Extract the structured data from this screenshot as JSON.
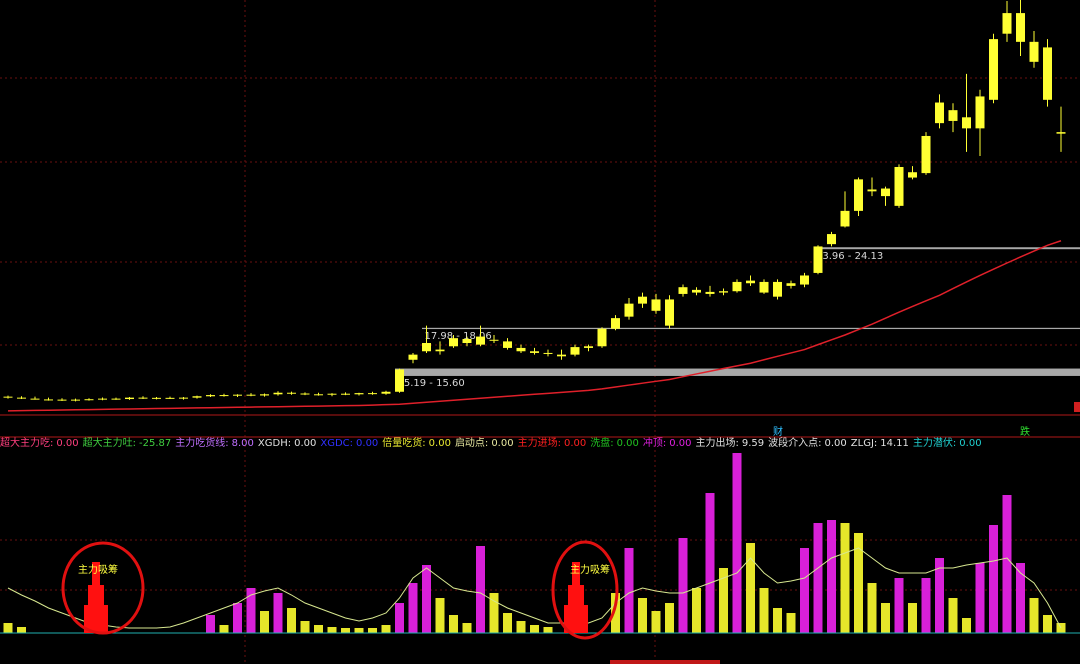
{
  "chart_data": [
    {
      "type": "candlestick",
      "log_scale": true,
      "ylim": [
        13.2,
        58.7
      ],
      "color": "#ffff33",
      "open": [
        14.1,
        14.05,
        14.0,
        13.96,
        13.95,
        13.92,
        13.95,
        13.97,
        14.0,
        13.98,
        14.05,
        14.0,
        14.04,
        14.0,
        14.05,
        14.12,
        14.18,
        14.15,
        14.2,
        14.16,
        14.22,
        14.3,
        14.26,
        14.22,
        14.2,
        14.25,
        14.22,
        14.28,
        14.25,
        14.35,
        16.1,
        16.6,
        16.7,
        16.9,
        17.1,
        17.0,
        17.3,
        17.2,
        16.8,
        16.6,
        16.5,
        16.4,
        16.4,
        16.8,
        16.9,
        18.0,
        18.8,
        19.7,
        20.0,
        18.2,
        20.4,
        20.7,
        20.4,
        20.5,
        20.6,
        21.2,
        21.3,
        20.2,
        21.0,
        21.1,
        22.0,
        24.4,
        26.0,
        27.5,
        29.5,
        29.0,
        28.0,
        31.0,
        31.5,
        37.7,
        39.5,
        38.5,
        37.0,
        41.0,
        52.0,
        56.0,
        50.5,
        49.5,
        36.5
      ],
      "high": [
        14.15,
        14.12,
        14.1,
        14.05,
        14.02,
        14.0,
        14.02,
        14.06,
        14.05,
        14.08,
        14.12,
        14.08,
        14.1,
        14.08,
        14.15,
        14.22,
        14.25,
        14.22,
        14.28,
        14.26,
        14.38,
        14.36,
        14.32,
        14.3,
        14.28,
        14.32,
        14.3,
        14.35,
        14.4,
        15.6,
        16.5,
        18.2,
        17.2,
        17.6,
        17.5,
        18.2,
        17.6,
        17.4,
        17.0,
        16.8,
        16.7,
        16.7,
        17.0,
        17.0,
        18.1,
        18.9,
        20.1,
        20.5,
        20.4,
        20.3,
        21.1,
        20.9,
        21.0,
        20.8,
        21.5,
        21.8,
        21.5,
        21.5,
        21.4,
        22.0,
        24.3,
        25.5,
        29.5,
        31.0,
        31.0,
        30.0,
        32.5,
        32.3,
        36.5,
        41.8,
        40.5,
        45.0,
        42.5,
        52.0,
        58.5,
        59.0,
        52.5,
        51.0,
        40.0
      ],
      "low": [
        14.0,
        13.98,
        13.95,
        13.9,
        13.88,
        13.86,
        13.9,
        13.92,
        13.94,
        13.94,
        13.98,
        13.96,
        13.98,
        13.95,
        14.0,
        14.08,
        14.1,
        14.08,
        14.12,
        14.1,
        14.15,
        14.2,
        14.18,
        14.15,
        14.12,
        14.18,
        14.16,
        14.2,
        14.2,
        14.3,
        15.9,
        16.5,
        16.4,
        16.8,
        16.9,
        16.9,
        17.1,
        16.7,
        16.5,
        16.4,
        16.3,
        16.1,
        16.3,
        16.6,
        16.8,
        17.9,
        18.6,
        19.4,
        19.0,
        18.0,
        20.2,
        20.3,
        20.2,
        20.3,
        20.5,
        21.0,
        20.4,
        20.0,
        20.8,
        20.9,
        21.9,
        24.2,
        25.9,
        27.0,
        29.0,
        28.0,
        27.8,
        30.8,
        31.3,
        37.0,
        36.5,
        34.0,
        33.5,
        40.5,
        50.5,
        48.0,
        46.0,
        40.0,
        34.0
      ],
      "close": [
        14.05,
        14.02,
        13.96,
        13.95,
        13.92,
        13.95,
        13.97,
        14.0,
        13.98,
        14.05,
        14.0,
        14.04,
        14.0,
        14.05,
        14.12,
        14.18,
        14.15,
        14.2,
        14.16,
        14.22,
        14.3,
        14.26,
        14.22,
        14.2,
        14.25,
        14.22,
        14.28,
        14.25,
        14.35,
        15.55,
        16.4,
        17.1,
        16.6,
        17.4,
        17.35,
        17.5,
        17.25,
        16.8,
        16.6,
        16.5,
        16.45,
        16.3,
        16.85,
        16.9,
        18.0,
        18.7,
        19.7,
        20.2,
        19.2,
        20.0,
        20.9,
        20.5,
        20.55,
        20.6,
        21.3,
        21.4,
        20.5,
        21.3,
        21.2,
        21.8,
        24.2,
        25.3,
        27.5,
        30.8,
        29.7,
        29.8,
        32.2,
        31.6,
        36.0,
        40.6,
        38.0,
        37.0,
        41.5,
        51.0,
        56.0,
        50.5,
        47.0,
        41.0,
        36.3
      ],
      "ma": {
        "color": "#e0202a",
        "values": [
          13.4,
          13.41,
          13.42,
          13.43,
          13.44,
          13.45,
          13.46,
          13.47,
          13.48,
          13.49,
          13.5,
          13.51,
          13.52,
          13.53,
          13.54,
          13.55,
          13.56,
          13.57,
          13.58,
          13.59,
          13.6,
          13.61,
          13.62,
          13.63,
          13.64,
          13.65,
          13.66,
          13.68,
          13.7,
          13.72,
          13.77,
          13.82,
          13.87,
          13.92,
          13.97,
          14.02,
          14.07,
          14.12,
          14.17,
          14.22,
          14.27,
          14.32,
          14.37,
          14.42,
          14.5,
          14.6,
          14.7,
          14.8,
          14.9,
          15.0,
          15.15,
          15.3,
          15.45,
          15.6,
          15.75,
          15.9,
          16.1,
          16.3,
          16.5,
          16.7,
          17.0,
          17.3,
          17.6,
          17.95,
          18.3,
          18.7,
          19.1,
          19.5,
          19.9,
          20.3,
          20.8,
          21.3,
          21.8,
          22.3,
          22.8,
          23.3,
          23.8,
          24.3,
          24.7
        ]
      },
      "zones": [
        {
          "label": "15.19 - 15.60",
          "low": 15.19,
          "high": 15.6
        },
        {
          "label": "17.98 - 18.06",
          "low": 17.98,
          "high": 18.06
        },
        {
          "label": "23.96 - 24.13",
          "low": 23.96,
          "high": 24.13
        }
      ],
      "markers": [
        {
          "text": "财",
          "color": "#30c0ff"
        },
        {
          "text": "跌",
          "color": "#30e030"
        }
      ]
    },
    {
      "type": "bar",
      "ylim": [
        0,
        190
      ],
      "series": [
        {
          "color": "#d820d8",
          "values": [
            null,
            null,
            null,
            null,
            null,
            null,
            null,
            null,
            null,
            null,
            null,
            null,
            null,
            null,
            null,
            18,
            null,
            30,
            45,
            null,
            40,
            null,
            null,
            null,
            null,
            null,
            null,
            null,
            null,
            30,
            50,
            68,
            null,
            null,
            null,
            87,
            null,
            null,
            null,
            null,
            null,
            null,
            null,
            null,
            null,
            null,
            85,
            null,
            null,
            null,
            95,
            null,
            140,
            null,
            180,
            null,
            null,
            null,
            null,
            85,
            110,
            113,
            null,
            null,
            null,
            null,
            55,
            null,
            55,
            75,
            null,
            null,
            70,
            108,
            138,
            70,
            null,
            null,
            null
          ]
        },
        {
          "color": "#e6e62a",
          "values": [
            10,
            6,
            null,
            null,
            null,
            null,
            null,
            null,
            null,
            null,
            null,
            null,
            null,
            null,
            null,
            null,
            8,
            null,
            null,
            22,
            null,
            25,
            12,
            8,
            6,
            5,
            5,
            5,
            8,
            null,
            null,
            null,
            35,
            18,
            10,
            null,
            40,
            20,
            12,
            8,
            6,
            null,
            null,
            null,
            null,
            40,
            null,
            35,
            22,
            30,
            null,
            45,
            null,
            65,
            null,
            90,
            45,
            25,
            20,
            null,
            null,
            null,
            110,
            100,
            50,
            30,
            null,
            30,
            null,
            null,
            35,
            15,
            null,
            null,
            null,
            null,
            35,
            18,
            10
          ]
        }
      ],
      "line": {
        "color": "#d8e890",
        "values": [
          45,
          38,
          32,
          25,
          20,
          15,
          10,
          8,
          6,
          5,
          5,
          5,
          6,
          10,
          15,
          20,
          25,
          30,
          38,
          42,
          45,
          38,
          30,
          25,
          20,
          15,
          12,
          15,
          20,
          35,
          55,
          65,
          55,
          45,
          42,
          40,
          32,
          25,
          20,
          15,
          10,
          10,
          10,
          10,
          15,
          30,
          40,
          45,
          42,
          40,
          40,
          45,
          50,
          55,
          60,
          75,
          60,
          50,
          52,
          55,
          65,
          75,
          80,
          85,
          75,
          65,
          60,
          60,
          60,
          65,
          65,
          68,
          70,
          72,
          75,
          60,
          50,
          30,
          5
        ]
      },
      "indicators": [
        {
          "name": "超大主力吃:",
          "value": 0,
          "value_label": "0.00",
          "color": "#ff3f7f"
        },
        {
          "name": "超大主力吐:",
          "value": -25.87,
          "value_label": "-25.87",
          "color": "#40d040"
        },
        {
          "name": "主力吃货线:",
          "value": 8,
          "value_label": "8.00",
          "color": "#c070ff"
        },
        {
          "name": "XGDH:",
          "value": 0,
          "value_label": "0.00",
          "color": "#e0e0e0"
        },
        {
          "name": "XGDC:",
          "value": 0,
          "value_label": "0.00",
          "color": "#3030ff"
        },
        {
          "name": "倍量吃货:",
          "value": 0,
          "value_label": "0.00",
          "color": "#e8e830"
        },
        {
          "name": "启动点:",
          "value": 0,
          "value_label": "0.00",
          "color": "#e8e8a0"
        },
        {
          "name": "主力进场:",
          "value": 0,
          "value_label": "0.00",
          "color": "#ff2020"
        },
        {
          "name": "洗盘:",
          "value": 0,
          "value_label": "0.00",
          "color": "#20c020"
        },
        {
          "name": "冲顶:",
          "value": 0,
          "value_label": "0.00",
          "color": "#e020e0"
        },
        {
          "name": "主力出场:",
          "value": 9.59,
          "value_label": "9.59",
          "color": "#e0e0e0"
        },
        {
          "name": "波段介入点:",
          "value": 0,
          "value_label": "0.00",
          "color": "#e0e0e0"
        },
        {
          "name": "ZLGJ:",
          "value": 14.11,
          "value_label": "14.11",
          "color": "#e0e0e0"
        },
        {
          "name": "主力潜伏:",
          "value": 0,
          "value_label": "0.00",
          "color": "#20d0d0"
        }
      ],
      "annotations": [
        "主力吸筹",
        "主力吸筹"
      ]
    }
  ]
}
